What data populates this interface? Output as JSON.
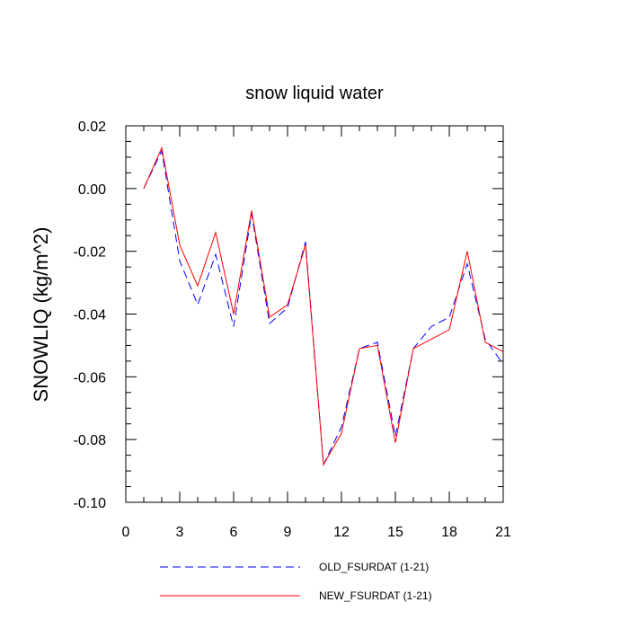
{
  "chart_data": {
    "type": "line",
    "title": "snow liquid water",
    "xlabel": "",
    "ylabel": "SNOWLIQ  (kg/m^2)",
    "xlim": [
      0,
      21
    ],
    "ylim": [
      -0.1,
      0.02
    ],
    "x_ticks": [
      0,
      3,
      6,
      9,
      12,
      15,
      18,
      21
    ],
    "x_tick_labels": [
      "0",
      "3",
      "6",
      "9",
      "12",
      "15",
      "18",
      "21"
    ],
    "y_ticks": [
      0.02,
      0.0,
      -0.02,
      -0.04,
      -0.06,
      -0.08,
      -0.1
    ],
    "y_tick_labels": [
      "0.02",
      "0.00",
      "-0.02",
      "-0.04",
      "-0.06",
      "-0.08",
      "-0.10"
    ],
    "grid": false,
    "legend_position": "bottom",
    "x": [
      1,
      2,
      3,
      4,
      5,
      6,
      7,
      8,
      9,
      10,
      11,
      12,
      13,
      14,
      15,
      16,
      17,
      18,
      19,
      20,
      21
    ],
    "series": [
      {
        "name": "OLD_FSURDAT (1-21)",
        "color": "#0000ff",
        "style": "dashed",
        "values": [
          0.0,
          0.012,
          -0.023,
          -0.037,
          -0.021,
          -0.044,
          -0.008,
          -0.043,
          -0.038,
          -0.017,
          -0.088,
          -0.076,
          -0.051,
          -0.049,
          -0.079,
          -0.051,
          -0.044,
          -0.041,
          -0.024,
          -0.048,
          -0.056
        ]
      },
      {
        "name": "NEW_FSURDAT (1-21)",
        "color": "#ff0000",
        "style": "solid",
        "values": [
          0.0,
          0.013,
          -0.018,
          -0.031,
          -0.014,
          -0.04,
          -0.007,
          -0.041,
          -0.037,
          -0.018,
          -0.088,
          -0.078,
          -0.051,
          -0.05,
          -0.081,
          -0.051,
          -0.048,
          -0.045,
          -0.02,
          -0.049,
          -0.052
        ]
      }
    ]
  }
}
